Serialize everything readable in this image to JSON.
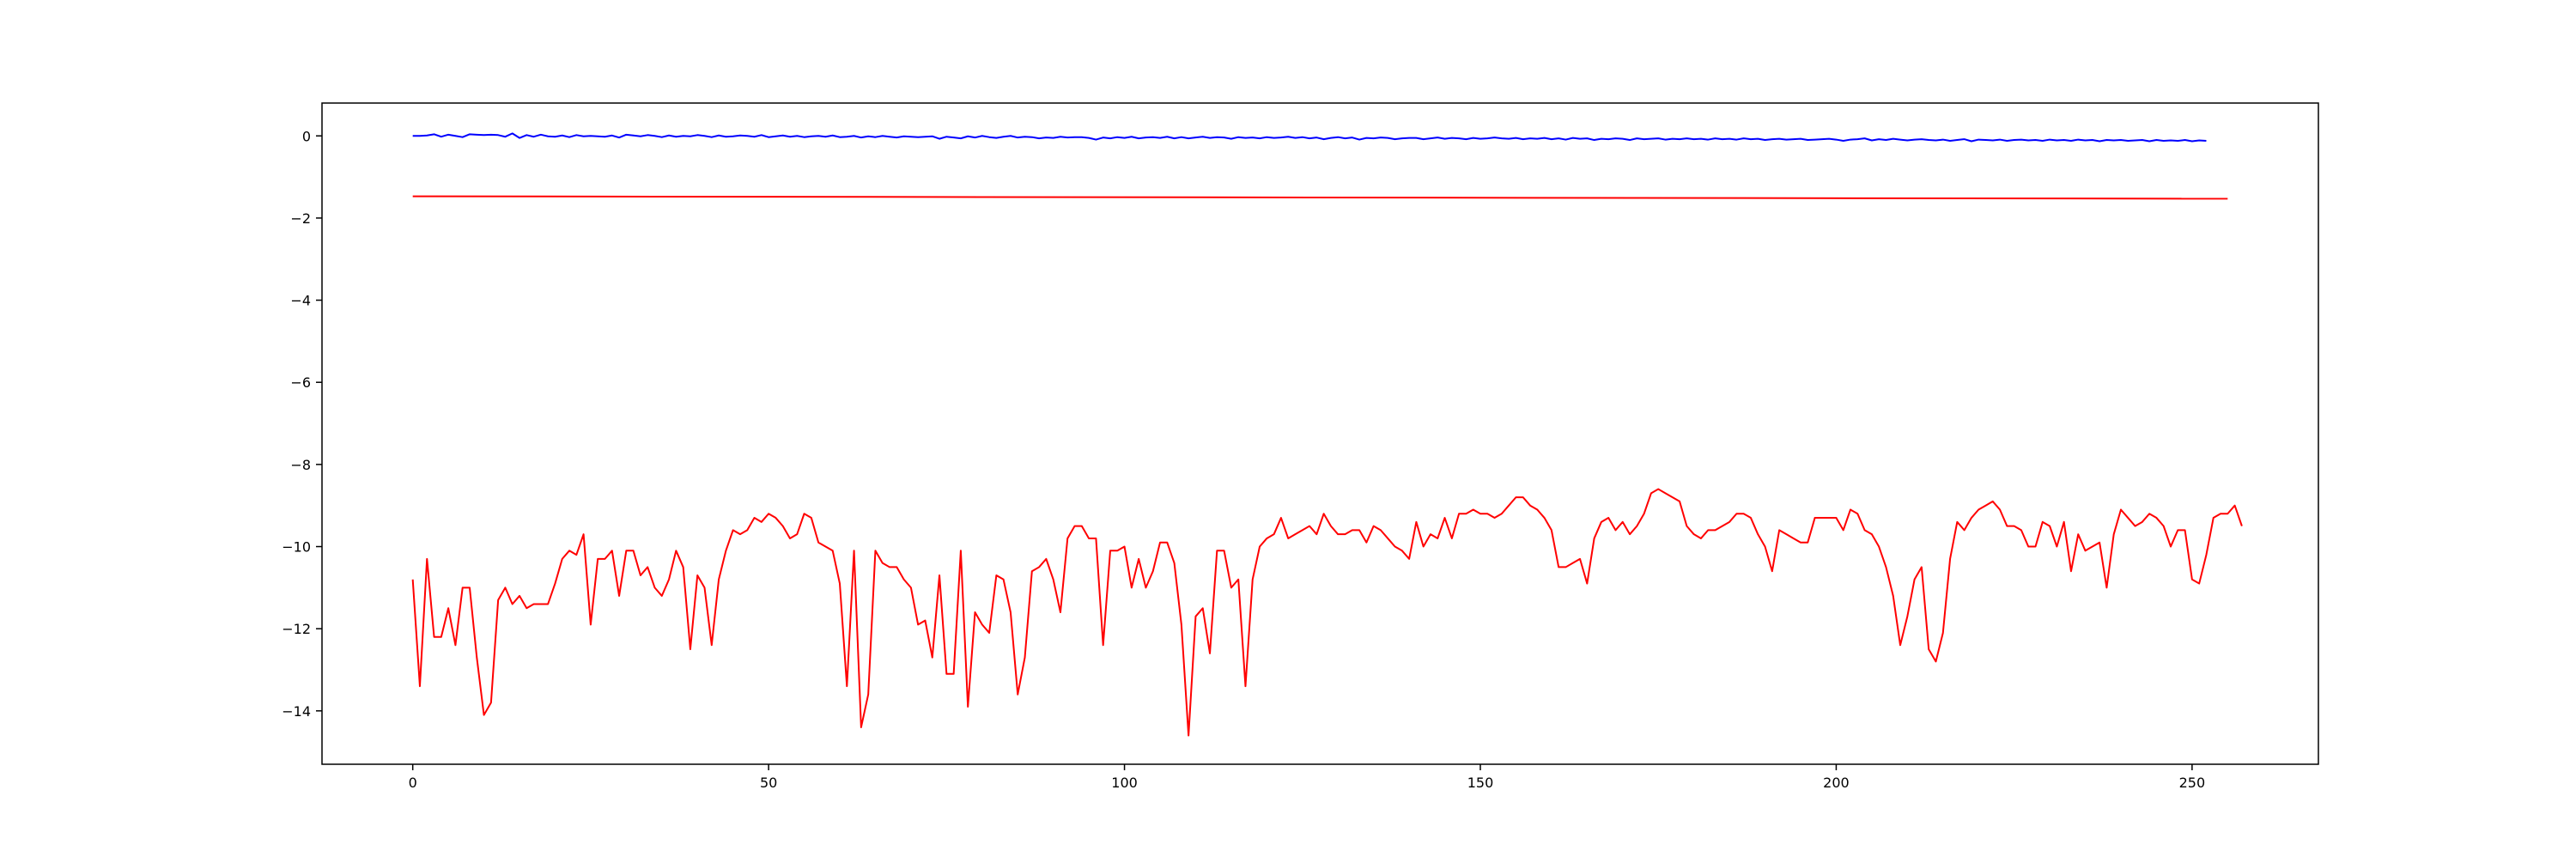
{
  "chart_data": {
    "type": "line",
    "title": "",
    "xlabel": "",
    "ylabel": "",
    "xlim": [
      -12.75,
      267.75
    ],
    "ylim": [
      -15.3,
      0.8
    ],
    "xticks": [
      0,
      50,
      100,
      150,
      200,
      250
    ],
    "yticks": [
      0,
      -2,
      -4,
      -6,
      -8,
      -10,
      -12,
      -14
    ],
    "grid": false,
    "legend": "none",
    "series": [
      {
        "color": "#0000ff",
        "linewidth": 2,
        "x_start": 0,
        "x_step": 1,
        "values": [
          0.0,
          0.0,
          0.01,
          0.04,
          -0.02,
          0.03,
          0.0,
          -0.03,
          0.04,
          0.03,
          0.02,
          0.03,
          0.02,
          -0.02,
          0.06,
          -0.05,
          0.02,
          -0.02,
          0.03,
          -0.01,
          -0.02,
          0.01,
          -0.03,
          0.02,
          -0.01,
          0.0,
          -0.01,
          -0.02,
          0.01,
          -0.04,
          0.03,
          0.01,
          -0.01,
          0.02,
          0.0,
          -0.03,
          0.01,
          -0.02,
          0.0,
          -0.01,
          0.02,
          0.0,
          -0.03,
          0.01,
          -0.02,
          -0.01,
          0.01,
          0.0,
          -0.02,
          0.02,
          -0.03,
          -0.01,
          0.01,
          -0.02,
          0.0,
          -0.03,
          -0.01,
          0.0,
          -0.02,
          0.01,
          -0.03,
          -0.02,
          0.0,
          -0.04,
          -0.01,
          -0.03,
          0.0,
          -0.02,
          -0.04,
          -0.01,
          -0.02,
          -0.03,
          -0.02,
          -0.01,
          -0.07,
          -0.02,
          -0.04,
          -0.06,
          -0.01,
          -0.04,
          0.0,
          -0.03,
          -0.05,
          -0.02,
          0.0,
          -0.04,
          -0.02,
          -0.03,
          -0.06,
          -0.04,
          -0.05,
          -0.02,
          -0.04,
          -0.03,
          -0.03,
          -0.05,
          -0.09,
          -0.04,
          -0.06,
          -0.03,
          -0.05,
          -0.02,
          -0.06,
          -0.04,
          -0.03,
          -0.05,
          -0.02,
          -0.06,
          -0.03,
          -0.06,
          -0.04,
          -0.02,
          -0.05,
          -0.03,
          -0.04,
          -0.07,
          -0.03,
          -0.05,
          -0.04,
          -0.06,
          -0.03,
          -0.05,
          -0.04,
          -0.02,
          -0.05,
          -0.03,
          -0.06,
          -0.04,
          -0.08,
          -0.05,
          -0.03,
          -0.06,
          -0.04,
          -0.09,
          -0.05,
          -0.06,
          -0.04,
          -0.05,
          -0.08,
          -0.06,
          -0.05,
          -0.05,
          -0.08,
          -0.06,
          -0.04,
          -0.07,
          -0.05,
          -0.06,
          -0.08,
          -0.05,
          -0.07,
          -0.06,
          -0.04,
          -0.06,
          -0.07,
          -0.05,
          -0.08,
          -0.06,
          -0.07,
          -0.05,
          -0.08,
          -0.06,
          -0.09,
          -0.05,
          -0.07,
          -0.06,
          -0.1,
          -0.07,
          -0.08,
          -0.06,
          -0.07,
          -0.1,
          -0.06,
          -0.08,
          -0.07,
          -0.06,
          -0.09,
          -0.07,
          -0.08,
          -0.06,
          -0.08,
          -0.07,
          -0.09,
          -0.06,
          -0.08,
          -0.07,
          -0.09,
          -0.06,
          -0.08,
          -0.07,
          -0.1,
          -0.08,
          -0.07,
          -0.09,
          -0.08,
          -0.07,
          -0.1,
          -0.09,
          -0.08,
          -0.07,
          -0.09,
          -0.12,
          -0.09,
          -0.08,
          -0.06,
          -0.11,
          -0.08,
          -0.1,
          -0.07,
          -0.09,
          -0.11,
          -0.09,
          -0.08,
          -0.1,
          -0.11,
          -0.09,
          -0.12,
          -0.1,
          -0.08,
          -0.13,
          -0.09,
          -0.1,
          -0.11,
          -0.09,
          -0.12,
          -0.1,
          -0.09,
          -0.11,
          -0.1,
          -0.12,
          -0.09,
          -0.11,
          -0.1,
          -0.12,
          -0.09,
          -0.11,
          -0.1,
          -0.13,
          -0.1,
          -0.11,
          -0.1,
          -0.12,
          -0.11,
          -0.1,
          -0.13,
          -0.1,
          -0.12,
          -0.11,
          -0.12,
          -0.1,
          -0.13,
          -0.11,
          -0.12
        ]
      },
      {
        "color": "#ff0000",
        "linewidth": 2,
        "x": [
          0,
          255
        ],
        "values": [
          -1.47,
          -1.53
        ]
      },
      {
        "color": "#ff0000",
        "linewidth": 2,
        "x_start": 0,
        "x_step": 1,
        "values": [
          -10.8,
          -13.4,
          -10.3,
          -12.2,
          -12.2,
          -11.5,
          -12.4,
          -11.0,
          -11.0,
          -12.7,
          -14.1,
          -13.8,
          -11.3,
          -11.0,
          -11.4,
          -11.2,
          -11.5,
          -11.4,
          -11.4,
          -11.4,
          -10.9,
          -10.3,
          -10.1,
          -10.2,
          -9.7,
          -11.9,
          -10.3,
          -10.3,
          -10.1,
          -11.2,
          -10.1,
          -10.1,
          -10.7,
          -10.5,
          -11.0,
          -11.2,
          -10.8,
          -10.1,
          -10.5,
          -12.5,
          -10.7,
          -11.0,
          -12.4,
          -10.8,
          -10.1,
          -9.6,
          -9.7,
          -9.6,
          -9.3,
          -9.4,
          -9.2,
          -9.3,
          -9.5,
          -9.8,
          -9.7,
          -9.2,
          -9.3,
          -9.9,
          -10.0,
          -10.1,
          -10.9,
          -13.4,
          -10.1,
          -14.4,
          -13.6,
          -10.1,
          -10.4,
          -10.5,
          -10.5,
          -10.8,
          -11.0,
          -11.9,
          -11.8,
          -12.7,
          -10.7,
          -13.1,
          -13.1,
          -10.1,
          -13.9,
          -11.6,
          -11.9,
          -12.1,
          -10.7,
          -10.8,
          -11.6,
          -13.6,
          -12.7,
          -10.6,
          -10.5,
          -10.3,
          -10.8,
          -11.6,
          -9.8,
          -9.5,
          -9.5,
          -9.8,
          -9.8,
          -12.4,
          -10.1,
          -10.1,
          -10.0,
          -11.0,
          -10.3,
          -11.0,
          -10.6,
          -9.9,
          -9.9,
          -10.4,
          -11.9,
          -14.6,
          -11.7,
          -11.5,
          -12.6,
          -10.1,
          -10.1,
          -11.0,
          -10.8,
          -13.4,
          -10.8,
          -10.0,
          -9.8,
          -9.7,
          -9.3,
          -9.8,
          -9.7,
          -9.6,
          -9.5,
          -9.7,
          -9.2,
          -9.5,
          -9.7,
          -9.7,
          -9.6,
          -9.6,
          -9.9,
          -9.5,
          -9.6,
          -9.8,
          -10.0,
          -10.1,
          -10.3,
          -9.4,
          -10.0,
          -9.7,
          -9.8,
          -9.3,
          -9.8,
          -9.2,
          -9.2,
          -9.1,
          -9.2,
          -9.2,
          -9.3,
          -9.2,
          -9.0,
          -8.8,
          -8.8,
          -9.0,
          -9.1,
          -9.3,
          -9.6,
          -10.5,
          -10.5,
          -10.4,
          -10.3,
          -10.9,
          -9.8,
          -9.4,
          -9.3,
          -9.6,
          -9.4,
          -9.7,
          -9.5,
          -9.2,
          -8.7,
          -8.6,
          -8.7,
          -8.8,
          -8.9,
          -9.5,
          -9.7,
          -9.8,
          -9.6,
          -9.6,
          -9.5,
          -9.4,
          -9.2,
          -9.2,
          -9.3,
          -9.7,
          -10.0,
          -10.6,
          -9.6,
          -9.7,
          -9.8,
          -9.9,
          -9.9,
          -9.3,
          -9.3,
          -9.3,
          -9.3,
          -9.6,
          -9.1,
          -9.2,
          -9.6,
          -9.7,
          -10.0,
          -10.5,
          -11.2,
          -12.4,
          -11.7,
          -10.8,
          -10.5,
          -12.5,
          -12.8,
          -12.1,
          -10.3,
          -9.4,
          -9.6,
          -9.3,
          -9.1,
          -9.0,
          -8.9,
          -9.1,
          -9.5,
          -9.5,
          -9.6,
          -10.0,
          -10.0,
          -9.4,
          -9.5,
          -10.0,
          -9.4,
          -10.6,
          -9.7,
          -10.1,
          -10.0,
          -9.9,
          -11.0,
          -9.7,
          -9.1,
          -9.3,
          -9.5,
          -9.4,
          -9.2,
          -9.3,
          -9.5,
          -10.0,
          -9.6,
          -9.6,
          -10.8,
          -10.9,
          -10.2,
          -9.3,
          -9.2,
          -9.2,
          -9.0,
          -9.5
        ]
      }
    ]
  }
}
